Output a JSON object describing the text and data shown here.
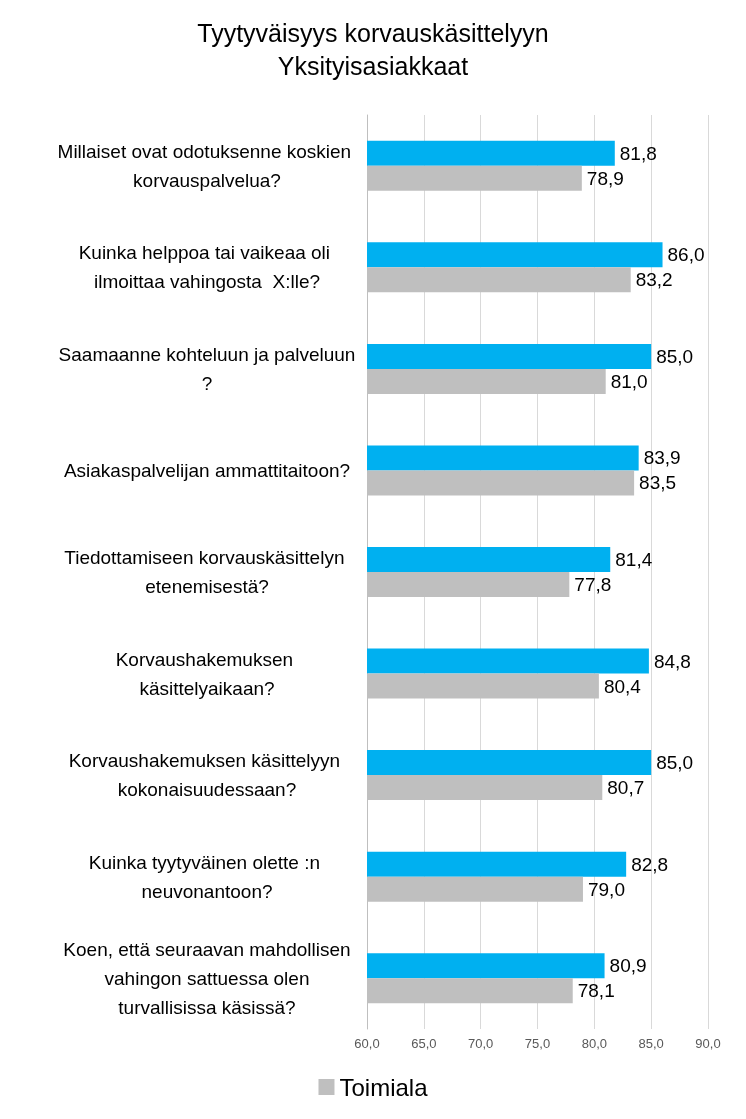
{
  "chart_data": {
    "type": "bar",
    "orientation": "horizontal",
    "title": "Tyytyväisyys korvauskäsittelyyn",
    "subtitle": "Yksityisasiakkaat",
    "categories": [
      "Millaiset ovat odotuksenne koskien korvauspalvelua?",
      "Kuinka helppoa tai vaikeaa oli ilmoittaa vahingosta  X:lle?",
      "Saamaanne kohteluun ja palveluun?",
      "Asiakaspalvelijan ammattitaitoon?",
      "Tiedottamiseen korvauskäsittelyn etenemisestä?",
      "Korvaushakemuksen käsittelyaikaan?",
      "Korvaushakemuksen käsittelyyn kokonaisuudessaan?",
      "Kuinka tyytyväinen olette :n neuvonantoon?",
      "Koen, että seuraavan mahdollisen vahingon sattuessa olen turvallisissa käsissä?"
    ],
    "series": [
      {
        "color": "#00b0f0",
        "values": [
          81.8,
          86.0,
          85.0,
          83.9,
          81.4,
          84.8,
          85.0,
          82.8,
          80.9
        ],
        "value_labels": [
          "81,8",
          "86,0",
          "85,0",
          "83,9",
          "81,4",
          "84,8",
          "85,0",
          "82,8",
          "80,9"
        ]
      },
      {
        "name": "Toimiala",
        "color": "#bfbfbf",
        "values": [
          78.9,
          83.2,
          81.0,
          83.5,
          77.8,
          80.4,
          80.7,
          79.0,
          78.1
        ],
        "value_labels": [
          "78,9",
          "83,2",
          "81,0",
          "83,5",
          "77,8",
          "80,4",
          "80,7",
          "79,0",
          "78,1"
        ]
      }
    ],
    "xlim": [
      60,
      90
    ],
    "xticks": [
      {
        "value": 60,
        "label": "60,0"
      },
      {
        "value": 65,
        "label": "65,0"
      },
      {
        "value": 70,
        "label": "70,0"
      },
      {
        "value": 75,
        "label": "75,0"
      },
      {
        "value": 80,
        "label": "80,0"
      },
      {
        "value": 85,
        "label": "85,0"
      },
      {
        "value": 90,
        "label": "90,0"
      }
    ],
    "grid": "x",
    "legend": "bottom"
  }
}
